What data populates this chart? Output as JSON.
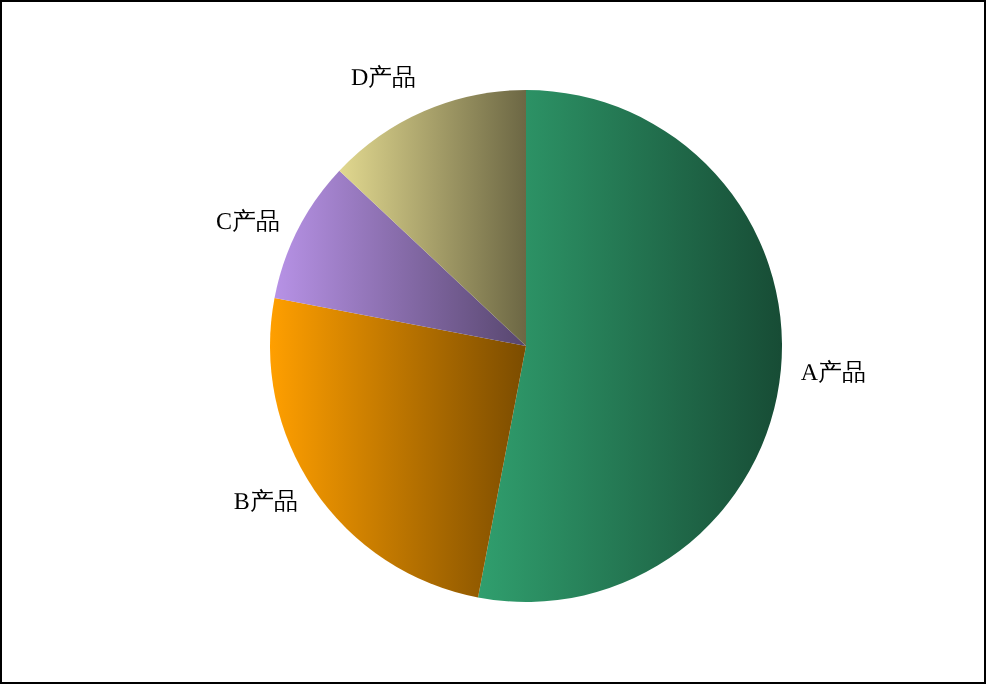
{
  "chart_data": {
    "type": "pie",
    "categories": [
      "A产品",
      "B产品",
      "C产品",
      "D产品"
    ],
    "values": [
      53,
      25,
      9,
      13
    ],
    "colors": [
      "#2a8a60",
      "#e08a00",
      "#9f7fc8",
      "#c4bc7c"
    ]
  }
}
